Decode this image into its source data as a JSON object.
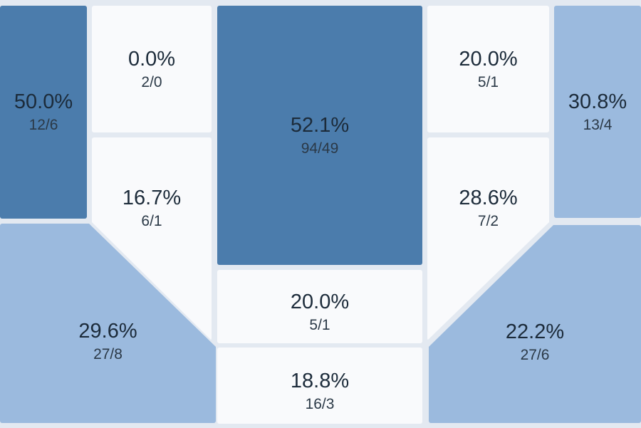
{
  "chart_data": {
    "type": "heatmap",
    "subtype": "basketball-shot-zones",
    "value_format": "attempts/made",
    "colors": {
      "dark": "#4B7CAC",
      "light": "#9BBADE",
      "empty": "#F9FAFC",
      "background": "#E3E9F1",
      "pct_text": "#1C2B3A",
      "shots_text": "#2B3947"
    },
    "zones": [
      {
        "name": "left-corner-mid",
        "pct": 50.0,
        "pct_label": "50.0%",
        "attempts": 12,
        "made": 6,
        "shots_label": "12/6",
        "tone": "dark"
      },
      {
        "name": "left-baseline-mid",
        "pct": 0.0,
        "pct_label": "0.0%",
        "attempts": 2,
        "made": 0,
        "shots_label": "2/0",
        "tone": "empty"
      },
      {
        "name": "left-wing-mid",
        "pct": 16.7,
        "pct_label": "16.7%",
        "attempts": 6,
        "made": 1,
        "shots_label": "6/1",
        "tone": "empty"
      },
      {
        "name": "paint",
        "pct": 52.1,
        "pct_label": "52.1%",
        "attempts": 94,
        "made": 49,
        "shots_label": "94/49",
        "tone": "dark"
      },
      {
        "name": "right-baseline-mid",
        "pct": 20.0,
        "pct_label": "20.0%",
        "attempts": 5,
        "made": 1,
        "shots_label": "5/1",
        "tone": "empty"
      },
      {
        "name": "right-wing-mid",
        "pct": 28.6,
        "pct_label": "28.6%",
        "attempts": 7,
        "made": 2,
        "shots_label": "7/2",
        "tone": "empty"
      },
      {
        "name": "right-corner-mid",
        "pct": 30.8,
        "pct_label": "30.8%",
        "attempts": 13,
        "made": 4,
        "shots_label": "13/4",
        "tone": "light"
      },
      {
        "name": "left-corner-three",
        "pct": 29.6,
        "pct_label": "29.6%",
        "attempts": 27,
        "made": 8,
        "shots_label": "27/8",
        "tone": "light"
      },
      {
        "name": "free-throw-mid",
        "pct": 20.0,
        "pct_label": "20.0%",
        "attempts": 5,
        "made": 1,
        "shots_label": "5/1",
        "tone": "empty"
      },
      {
        "name": "top-of-key-three",
        "pct": 18.8,
        "pct_label": "18.8%",
        "attempts": 16,
        "made": 3,
        "shots_label": "16/3",
        "tone": "empty"
      },
      {
        "name": "right-corner-three",
        "pct": 22.2,
        "pct_label": "22.2%",
        "attempts": 27,
        "made": 6,
        "shots_label": "27/6",
        "tone": "light"
      }
    ]
  }
}
